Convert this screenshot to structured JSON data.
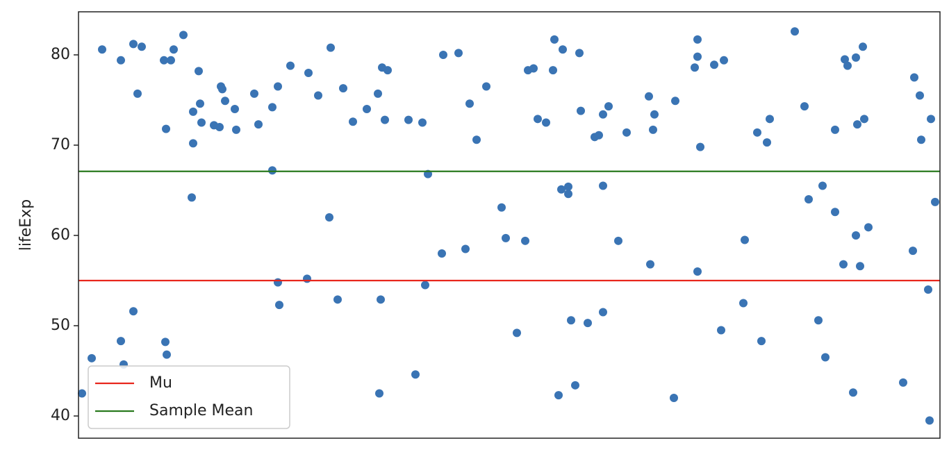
{
  "chart_data": {
    "type": "scatter",
    "y_label": "lifeExp",
    "color": "#3a74b4",
    "x": [
      0,
      7,
      14.5,
      28,
      28,
      30,
      37,
      37,
      40,
      43,
      59,
      60.5,
      60,
      61,
      64,
      66,
      73,
      79,
      80,
      80,
      84,
      85,
      86,
      95,
      99,
      100,
      101,
      103,
      110,
      111,
      124,
      127,
      137,
      137,
      141,
      141,
      142,
      150,
      162,
      163,
      170,
      178,
      179,
      184,
      188,
      195,
      205,
      213,
      214,
      215,
      216,
      218,
      220,
      235,
      240,
      245,
      247,
      249,
      259,
      260,
      271,
      276,
      279,
      284,
      291,
      302,
      305,
      313,
      319,
      321,
      325,
      328,
      334,
      339,
      340,
      343,
      345,
      346,
      350,
      350,
      352,
      355,
      358,
      359,
      364,
      369,
      372,
      375,
      375,
      375,
      379,
      386,
      392,
      408,
      409,
      411,
      412,
      426,
      427,
      441,
      443,
      443,
      443,
      445,
      455,
      460,
      462,
      476,
      477,
      486,
      489,
      493,
      495,
      513,
      520,
      523,
      530,
      533,
      535,
      542,
      542,
      548,
      549,
      551,
      555,
      557,
      557,
      558,
      560,
      562,
      563,
      566,
      591,
      598,
      599,
      603,
      604,
      609,
      610,
      611,
      614
    ],
    "values": [
      42.5,
      46.4,
      80.6,
      79.4,
      48.3,
      45.7,
      81.2,
      51.6,
      75.7,
      80.9,
      79.4,
      71.8,
      48.2,
      46.8,
      79.4,
      80.6,
      82.2,
      64.2,
      70.2,
      73.7,
      78.2,
      74.6,
      72.5,
      72.2,
      72.0,
      76.5,
      76.2,
      74.9,
      74.0,
      71.7,
      75.7,
      72.3,
      67.2,
      74.2,
      76.5,
      54.8,
      52.3,
      78.8,
      55.2,
      78.0,
      75.5,
      62.0,
      80.8,
      52.9,
      76.3,
      72.6,
      74.0,
      75.7,
      42.5,
      52.9,
      78.6,
      72.8,
      78.3,
      72.8,
      44.6,
      72.5,
      54.5,
      66.8,
      58.0,
      80.0,
      80.2,
      58.5,
      74.6,
      70.6,
      76.5,
      63.1,
      59.7,
      49.2,
      59.4,
      78.3,
      78.5,
      72.9,
      72.5,
      78.3,
      81.7,
      42.3,
      65.1,
      80.6,
      65.4,
      64.6,
      50.6,
      43.4,
      80.2,
      73.8,
      50.3,
      70.9,
      71.1,
      65.5,
      51.5,
      73.4,
      74.3,
      59.4,
      71.4,
      75.4,
      56.8,
      71.7,
      73.4,
      42.0,
      74.9,
      78.6,
      81.7,
      79.8,
      56.0,
      69.8,
      78.9,
      49.5,
      79.4,
      52.5,
      59.5,
      71.4,
      48.3,
      70.3,
      72.9,
      82.6,
      74.3,
      64.0,
      50.6,
      65.5,
      46.5,
      62.6,
      71.7,
      56.8,
      79.5,
      78.8,
      42.6,
      60.0,
      79.7,
      72.3,
      56.6,
      80.9,
      72.9,
      60.9,
      43.7,
      58.3,
      77.5,
      75.5,
      70.6,
      54.0,
      39.5,
      72.9,
      63.7
    ],
    "hlines": [
      {
        "name": "Mu",
        "value": 55,
        "color": "#e8261c"
      },
      {
        "name": "Sample Mean",
        "value": 67.1,
        "color": "#2a7a1e"
      }
    ],
    "xlim": [
      -2.5,
      617.5
    ],
    "ylim": [
      37.54,
      84.77
    ],
    "yticks": [
      40,
      50,
      60,
      70,
      80
    ],
    "legend": "lower left"
  }
}
